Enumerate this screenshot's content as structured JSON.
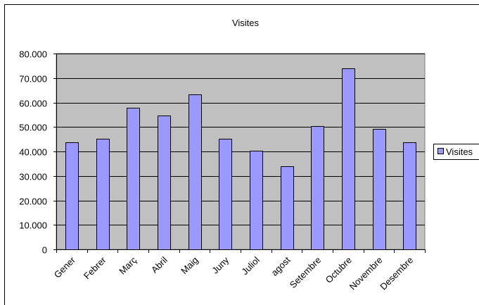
{
  "chart_data": {
    "type": "bar",
    "title": "Visites",
    "categories": [
      "Gener",
      "Febrer",
      "Març",
      "Abril",
      "Maig",
      "Juny",
      "Juliol",
      "agost",
      "Setembre",
      "Octubre",
      "Novembre",
      "Desembre"
    ],
    "series": [
      {
        "name": "Visites",
        "values": [
          43600,
          45300,
          57800,
          54600,
          63200,
          45300,
          40400,
          34000,
          50300,
          73900,
          49300,
          43600
        ],
        "color": "#9999ff"
      }
    ],
    "ylim": [
      0,
      80000
    ],
    "yticks": [
      0,
      10000,
      20000,
      30000,
      40000,
      50000,
      60000,
      70000,
      80000
    ],
    "ytick_labels": [
      "0",
      "10.000",
      "20.000",
      "30.000",
      "40.000",
      "50.000",
      "60.000",
      "70.000",
      "80.000"
    ],
    "grid": true,
    "plot_background": "#c0c0c0",
    "legend": {
      "position": "right",
      "label": "Visites"
    }
  }
}
